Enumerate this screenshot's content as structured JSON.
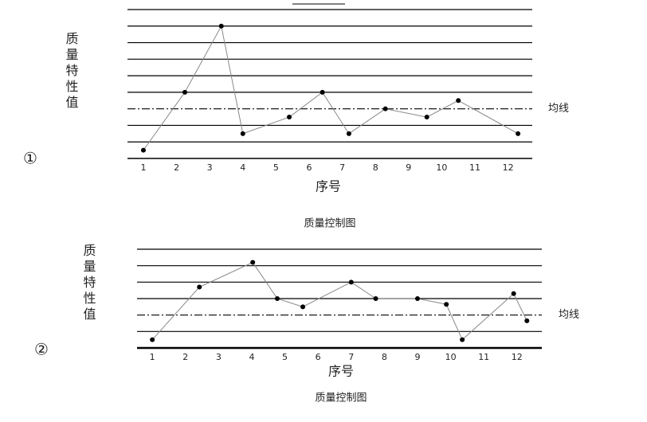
{
  "chart_data": [
    {
      "type": "line",
      "label": "①",
      "ylabel": "质量特性值",
      "xlabel": "序号",
      "caption": "质量控制图",
      "mean_label": "均线",
      "mean": 3,
      "x": [
        1,
        2.25,
        3.35,
        4,
        5.4,
        6.4,
        7.2,
        8.3,
        9.55,
        10.5,
        12.3
      ],
      "values": [
        0.5,
        4,
        8,
        1.5,
        2.5,
        4,
        1.5,
        3,
        2.5,
        3.5,
        1.5
      ],
      "xlim": [
        0.52,
        12.73
      ],
      "xticks": [
        1,
        2,
        3,
        4,
        5,
        6,
        7,
        8,
        9,
        10,
        11,
        12
      ],
      "ylim": [
        0,
        9
      ],
      "yticks": [
        0,
        1,
        2,
        4,
        5,
        6,
        7,
        8,
        9
      ],
      "grid": true,
      "color": "#000000"
    },
    {
      "type": "line",
      "label": "②",
      "ylabel": "质量特性值",
      "xlabel": "序号",
      "caption": "质量控制图",
      "mean_label": "均线",
      "mean": 2,
      "x": [
        1,
        2.42,
        4.03,
        4.77,
        5.54,
        7,
        7.74,
        9,
        9.87,
        10.35,
        11.9,
        12.3
      ],
      "values": [
        0.5,
        3.7,
        5.2,
        3,
        2.5,
        4,
        3,
        3,
        2.65,
        0.5,
        3.3,
        1.65
      ],
      "xlim": [
        0.54,
        12.75
      ],
      "xticks": [
        1,
        2,
        3,
        4,
        5,
        6,
        7,
        8,
        9,
        10,
        11,
        12
      ],
      "ylim": [
        0,
        6
      ],
      "yticks": [
        0,
        1,
        3,
        4,
        5,
        6
      ],
      "grid": true,
      "color": "#000000"
    }
  ]
}
